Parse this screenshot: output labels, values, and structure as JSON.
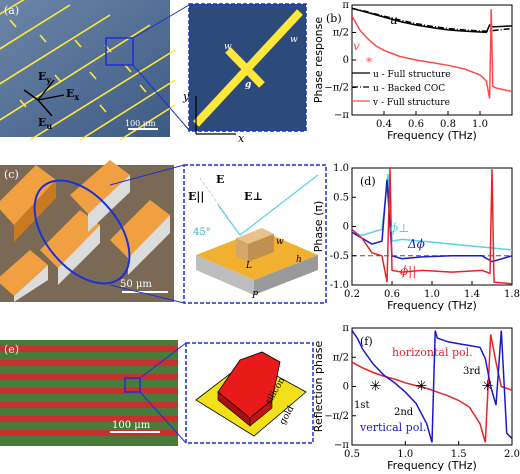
{
  "panels": {
    "a": {
      "label": "(a)",
      "scalebar": "100 μm",
      "e_labels": [
        "E",
        "y",
        "E",
        "x",
        "E",
        "u"
      ],
      "zoom_labels": {
        "w": "w",
        "g": "g",
        "y": "y",
        "x": "x"
      }
    },
    "c": {
      "label": "(c)",
      "scalebar": "50 μm",
      "zoom_labels": {
        "e": "E",
        "e_par": "E||",
        "e_perp": "E⊥",
        "angle": "45°",
        "w": "w",
        "h": "h",
        "L": "L",
        "P": "P"
      }
    },
    "e": {
      "label": "(e)",
      "scalebar": "100 μm",
      "zoom_labels": {
        "silicon": "silicon",
        "gold": "gold"
      }
    }
  },
  "colors": {
    "substrate_blue": "#2c4a7a",
    "gold_line": "#ffe83a",
    "red": "#e8242a",
    "blue": "#1a1ac8",
    "cyan": "#5ad0e8",
    "zoom_border": "#1b2fd6"
  },
  "chart_data": [
    {
      "type": "line",
      "panel": "(b)",
      "xlabel": "Frequency (THz)",
      "ylabel": "Phase response",
      "xlim": [
        0.2,
        1.2
      ],
      "xticks": [
        "0.4",
        "0.6",
        "0.8",
        "1.0"
      ],
      "ylim": [
        -3.1416,
        3.1416
      ],
      "yticks": [
        "π",
        "π/2",
        "0",
        "−π/2",
        "−π"
      ],
      "series": [
        {
          "name": "u - Full structure",
          "style": "solid",
          "color": "#000000",
          "x": [
            0.2,
            0.3,
            0.4,
            0.5,
            0.6,
            0.7,
            0.8,
            0.9,
            1.0,
            1.04,
            1.06,
            1.08,
            1.1,
            1.2
          ],
          "y": [
            2.95,
            2.7,
            2.45,
            2.2,
            2.0,
            1.85,
            1.72,
            1.65,
            1.6,
            1.58,
            2.0,
            1.9,
            1.9,
            1.95
          ]
        },
        {
          "name": "u - Backed COC",
          "style": "dashdot",
          "color": "#000000",
          "x": [
            0.2,
            0.3,
            0.4,
            0.5,
            0.6,
            0.7,
            0.8,
            0.9,
            1.0,
            1.05,
            1.1,
            1.2
          ],
          "y": [
            2.95,
            2.75,
            2.5,
            2.28,
            2.08,
            1.92,
            1.8,
            1.72,
            1.66,
            1.64,
            1.7,
            1.8
          ]
        },
        {
          "name": "v - Full structure",
          "style": "solid",
          "color": "#ff4a4a",
          "x": [
            0.2,
            0.25,
            0.3,
            0.35,
            0.4,
            0.5,
            0.6,
            0.7,
            0.8,
            0.9,
            1.0,
            1.04,
            1.06,
            1.07,
            1.08,
            1.1,
            1.2
          ],
          "y": [
            2.5,
            1.7,
            1.2,
            0.8,
            0.55,
            0.2,
            0.0,
            -0.15,
            -0.3,
            -0.5,
            -0.85,
            -1.2,
            -2.2,
            2.9,
            -1.5,
            -1.6,
            -1.8
          ]
        }
      ],
      "annotations": [
        "u",
        "v",
        "*"
      ]
    },
    {
      "type": "line",
      "panel": "(d)",
      "xlabel": "Frequency (THz)",
      "ylabel": "Phase (π)",
      "xlim": [
        0.2,
        1.8
      ],
      "xticks": [
        "0.2",
        "0.6",
        "1.0",
        "1.4",
        "1.8"
      ],
      "ylim": [
        -1.0,
        1.0
      ],
      "yticks": [
        "1.0",
        "0.5",
        "0",
        "-0.5",
        "-1.0"
      ],
      "reference_line": -0.5,
      "series": [
        {
          "name": "ϕ⊥",
          "color": "#5ad0e8",
          "x": [
            0.2,
            0.3,
            0.4,
            0.5,
            0.56,
            0.6,
            0.7,
            0.9,
            1.2,
            1.5,
            1.8
          ],
          "y": [
            -0.1,
            -0.15,
            -0.1,
            -0.05,
            0.9,
            -0.25,
            -0.22,
            -0.25,
            -0.3,
            -0.35,
            -0.4
          ]
        },
        {
          "name": "Δϕ",
          "color": "#1a1ac8",
          "x": [
            0.2,
            0.3,
            0.4,
            0.5,
            0.55,
            0.6,
            0.7,
            0.9,
            1.2,
            1.5,
            1.6,
            1.8
          ],
          "y": [
            -0.1,
            -0.2,
            -0.3,
            -0.25,
            0.8,
            -0.5,
            -0.55,
            -0.52,
            -0.5,
            -0.5,
            -0.6,
            -0.5
          ]
        },
        {
          "name": "ϕ||",
          "color": "#e8242a",
          "x": [
            0.2,
            0.3,
            0.4,
            0.5,
            0.55,
            0.58,
            0.6,
            0.7,
            0.9,
            1.2,
            1.5,
            1.58,
            1.6,
            1.62,
            1.8
          ],
          "y": [
            -0.05,
            -0.2,
            -0.45,
            -0.5,
            -0.95,
            1.0,
            -0.75,
            -0.78,
            -0.75,
            -0.78,
            -0.75,
            -0.8,
            0.98,
            -0.95,
            -0.98
          ]
        }
      ]
    },
    {
      "type": "line",
      "panel": "(f)",
      "xlabel": "Frequency (THz)",
      "ylabel": "Reflection phase",
      "xlim": [
        0.5,
        2.0
      ],
      "xticks": [
        "0.5",
        "1.0",
        "1.5",
        "2.0"
      ],
      "ylim": [
        -3.1416,
        3.1416
      ],
      "yticks": [
        "π",
        "π/2",
        "0",
        "−π/2",
        "−π"
      ],
      "series": [
        {
          "name": "horizontal pol.",
          "color": "#e8242a",
          "x": [
            0.5,
            0.6,
            0.7,
            0.8,
            0.9,
            1.0,
            1.1,
            1.2,
            1.3,
            1.4,
            1.5,
            1.6,
            1.7,
            1.75,
            1.8,
            1.85,
            1.9,
            2.0
          ],
          "y": [
            1.3,
            1.0,
            0.75,
            0.55,
            0.4,
            0.2,
            0.05,
            -0.1,
            -0.3,
            -0.5,
            -0.75,
            -1.1,
            -2.0,
            -3.0,
            2.8,
            1.3,
            0.0,
            -0.2
          ]
        },
        {
          "name": "vertical pol.",
          "color": "#1a1ac8",
          "x": [
            0.5,
            0.55,
            0.6,
            0.7,
            0.8,
            0.9,
            1.0,
            1.1,
            1.2,
            1.25,
            1.28,
            1.3,
            1.4,
            1.5,
            1.6,
            1.7,
            1.75,
            1.8,
            1.85,
            1.9,
            1.95,
            2.0
          ],
          "y": [
            3.0,
            2.6,
            2.0,
            1.2,
            0.6,
            0.2,
            -0.3,
            -0.9,
            -2.0,
            -3.0,
            3.0,
            2.6,
            2.4,
            2.3,
            2.2,
            2.1,
            1.5,
            0.0,
            -1.0,
            3.0,
            -2.5,
            -2.8
          ]
        }
      ],
      "annotations": [
        "1st",
        "2nd",
        "3rd"
      ]
    }
  ]
}
